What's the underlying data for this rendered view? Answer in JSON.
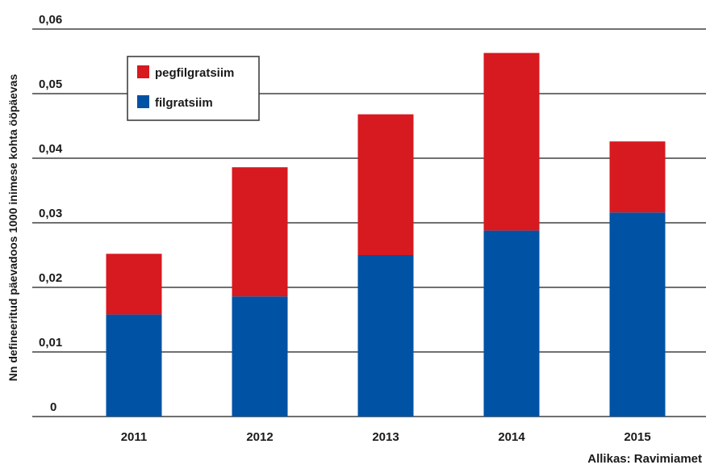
{
  "chart_data": {
    "type": "bar",
    "stacked": true,
    "categories": [
      "2011",
      "2012",
      "2013",
      "2014",
      "2015"
    ],
    "series": [
      {
        "name": "filgratsiim",
        "values": [
          0.0158,
          0.0186,
          0.025,
          0.0288,
          0.0316
        ],
        "color": "#0052a5"
      },
      {
        "name": "pegfilgratsiim",
        "values": [
          0.0094,
          0.02,
          0.0218,
          0.0275,
          0.011
        ],
        "color": "#d71920"
      }
    ],
    "legend_order": [
      "pegfilgratsiim",
      "filgratsiim"
    ],
    "ylabel": "Nn defineeritud päevadoos 1000 inimese kohta ööpäevas",
    "xlabel": "",
    "ylim": [
      0,
      0.06
    ],
    "yticks": [
      0,
      0.01,
      0.02,
      0.03,
      0.04,
      0.05,
      0.06
    ],
    "ytick_labels": [
      "0",
      "0,01",
      "0,02",
      "0,03",
      "0,04",
      "0,05",
      "0,06"
    ],
    "grid": true,
    "legend_position": "top-left"
  },
  "source": "Allikas: Ravimiamet"
}
